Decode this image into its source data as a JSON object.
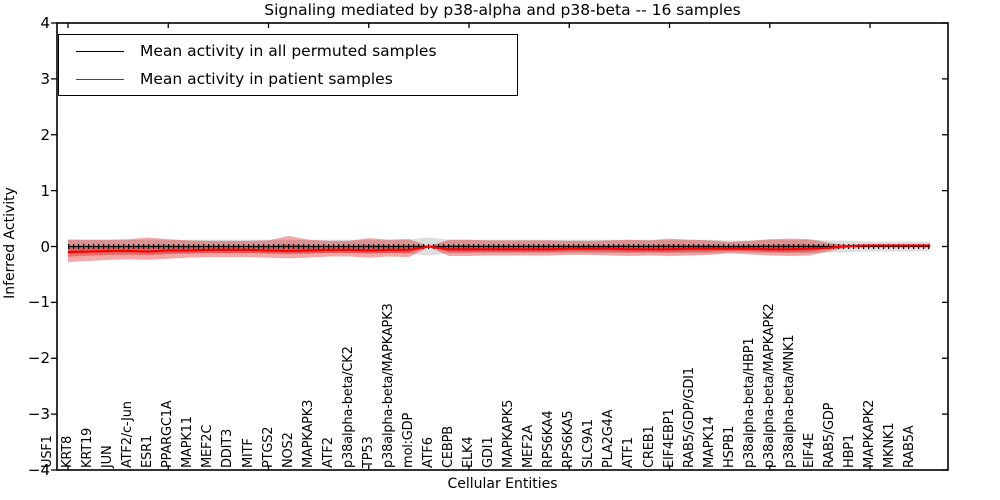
{
  "figure": {
    "title": "Signaling mediated by p38-alpha and p38-beta -- 16 samples"
  },
  "legend": {
    "position": "upper left",
    "items": [
      {
        "label": "Mean activity in all permuted samples",
        "color": "#000000"
      },
      {
        "label": "Mean activity in patient samples",
        "color": "#ff0000"
      }
    ]
  },
  "chart_data": {
    "type": "line",
    "subtype": "mean-lines-with-std-bands",
    "title": "Signaling mediated by p38-alpha and p38-beta -- 16 samples",
    "xlabel": "Cellular Entities",
    "ylabel": "Inferred Activity",
    "ylim": [
      -4,
      4
    ],
    "yticks": [
      4,
      3,
      2,
      1,
      0,
      -1,
      -2,
      -3,
      -4
    ],
    "grid": false,
    "legend_position": "upper left",
    "x_tick_label_rotation": 90,
    "categories": [
      "USF1",
      "KRT8",
      "KRT19",
      "JUN",
      "ATF2/c-Jun",
      "ESR1",
      "PPARGC1A",
      "MAPK11",
      "MEF2C",
      "DDIT3",
      "MITF",
      "PTGS2",
      "NOS2",
      "MAPKAPK3",
      "ATF2",
      "p38alpha-beta/CK2",
      "TP53",
      "p38alpha-beta/MAPKAPK3",
      "mol:GDP",
      "ATF6",
      "CEBPB",
      "ELK4",
      "GDI1",
      "MAPKAPK5",
      "MEF2A",
      "RPS6KA4",
      "RPS6KA5",
      "SLC9A1",
      "PLA2G4A",
      "ATF1",
      "CREB1",
      "EIF4EBP1",
      "RAB5/GDP/GDI1",
      "MAPK14",
      "HSPB1",
      "p38alpha-beta/HBP1",
      "p38alpha-beta/MAPKAPK2",
      "p38alpha-beta/MNK1",
      "EIF4E",
      "RAB5/GDP",
      "HBP1",
      "MAPKAPK2",
      "MKNK1",
      "RAB5A"
    ],
    "series": [
      {
        "name": "Mean activity in all permuted samples",
        "color": "#000000",
        "style": "solid-with-tick-dashes",
        "values": [
          0,
          0,
          0,
          0,
          0,
          0,
          0,
          0,
          0,
          0,
          0,
          0,
          0,
          0,
          0,
          0,
          0,
          0,
          0,
          0,
          0,
          0,
          0,
          0,
          0,
          0,
          0,
          0,
          0,
          0,
          0,
          0,
          0,
          0,
          0,
          0,
          0,
          0,
          0,
          0,
          0,
          0,
          0,
          0
        ]
      },
      {
        "name": "Mean activity in patient samples",
        "color": "#ff0000",
        "style": "solid",
        "values": [
          -0.1,
          -0.09,
          -0.08,
          -0.08,
          -0.09,
          -0.07,
          -0.07,
          -0.06,
          -0.06,
          -0.06,
          -0.07,
          -0.08,
          -0.07,
          -0.06,
          -0.06,
          -0.07,
          -0.06,
          -0.06,
          0.0,
          -0.05,
          -0.05,
          -0.05,
          -0.05,
          -0.05,
          -0.05,
          -0.04,
          -0.04,
          -0.04,
          -0.05,
          -0.05,
          -0.05,
          -0.04,
          -0.04,
          -0.04,
          -0.04,
          -0.05,
          -0.05,
          -0.04,
          -0.02,
          0.01,
          0.02,
          0.02,
          0.02,
          0.02
        ]
      }
    ],
    "bands": [
      {
        "name": "permuted-samples-std-band",
        "color": "#999999",
        "opacity": 0.33,
        "upper": [
          0.13,
          0.12,
          0.12,
          0.12,
          0.12,
          0.12,
          0.12,
          0.12,
          0.12,
          0.12,
          0.12,
          0.12,
          0.12,
          0.12,
          0.12,
          0.12,
          0.12,
          0.13,
          0.16,
          0.12,
          0.12,
          0.12,
          0.12,
          0.12,
          0.12,
          0.12,
          0.12,
          0.12,
          0.12,
          0.12,
          0.12,
          0.12,
          0.12,
          0.11,
          0.11,
          0.12,
          0.12,
          0.12,
          0.11,
          0.1,
          0.09,
          0.09,
          0.09,
          0.08
        ],
        "lower": [
          -0.13,
          -0.12,
          -0.12,
          -0.12,
          -0.12,
          -0.12,
          -0.12,
          -0.12,
          -0.12,
          -0.12,
          -0.12,
          -0.12,
          -0.12,
          -0.12,
          -0.12,
          -0.12,
          -0.12,
          -0.13,
          -0.16,
          -0.12,
          -0.12,
          -0.12,
          -0.12,
          -0.12,
          -0.12,
          -0.12,
          -0.12,
          -0.12,
          -0.12,
          -0.12,
          -0.12,
          -0.12,
          -0.12,
          -0.11,
          -0.11,
          -0.12,
          -0.12,
          -0.12,
          -0.11,
          -0.1,
          -0.09,
          -0.09,
          -0.09,
          -0.08
        ]
      },
      {
        "name": "patient-samples-std-band",
        "color": "#d90000",
        "opacity": 0.34,
        "upper": [
          0.12,
          0.12,
          0.12,
          0.13,
          0.16,
          0.13,
          0.11,
          0.1,
          0.1,
          0.1,
          0.11,
          0.19,
          0.12,
          0.1,
          0.1,
          0.15,
          0.12,
          0.13,
          0.01,
          0.12,
          0.12,
          0.11,
          0.11,
          0.11,
          0.11,
          0.1,
          0.1,
          0.11,
          0.12,
          0.11,
          0.14,
          0.12,
          0.11,
          0.08,
          0.1,
          0.13,
          0.14,
          0.13,
          0.06,
          0.03,
          0.03,
          0.03,
          0.03,
          0.03
        ],
        "lower": [
          -0.28,
          -0.26,
          -0.24,
          -0.23,
          -0.24,
          -0.22,
          -0.2,
          -0.19,
          -0.19,
          -0.19,
          -0.2,
          -0.21,
          -0.2,
          -0.18,
          -0.18,
          -0.2,
          -0.18,
          -0.19,
          -0.01,
          -0.17,
          -0.17,
          -0.16,
          -0.16,
          -0.16,
          -0.16,
          -0.15,
          -0.15,
          -0.16,
          -0.17,
          -0.16,
          -0.17,
          -0.16,
          -0.15,
          -0.12,
          -0.14,
          -0.16,
          -0.17,
          -0.16,
          -0.08,
          -0.01,
          0.0,
          0.0,
          0.0,
          0.0
        ]
      },
      {
        "name": "patient-samples-inner-band",
        "color": "#d90000",
        "opacity": 0.34,
        "derived": "patient mean ± 0.45 × (std band half-width)"
      }
    ]
  }
}
